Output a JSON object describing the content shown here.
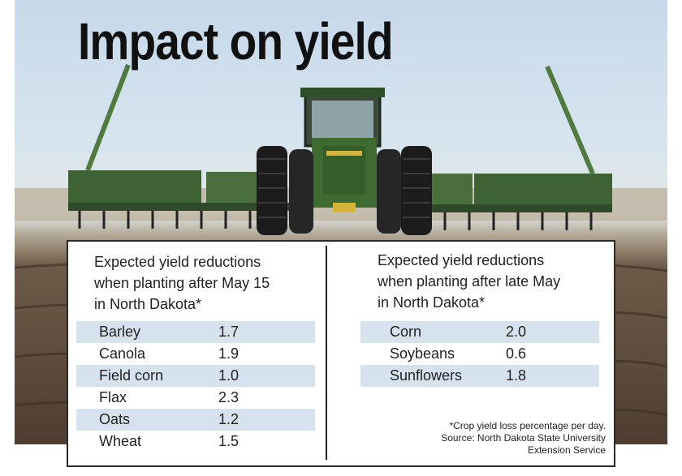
{
  "headline": "Impact on yield",
  "left_table": {
    "title_lines": [
      "Expected yield reductions",
      "when planting after May 15",
      "in North Dakota*"
    ],
    "rows": [
      {
        "crop": "Barley",
        "value": "1.7",
        "shaded": true
      },
      {
        "crop": "Canola",
        "value": "1.9",
        "shaded": false
      },
      {
        "crop": "Field corn",
        "value": "1.0",
        "shaded": true
      },
      {
        "crop": "Flax",
        "value": "2.3",
        "shaded": false
      },
      {
        "crop": "Oats",
        "value": "1.2",
        "shaded": true
      },
      {
        "crop": "Wheat",
        "value": "1.5",
        "shaded": false
      }
    ]
  },
  "right_table": {
    "title_lines": [
      "Expected yield reductions",
      "when planting after late May",
      "in North Dakota*"
    ],
    "rows": [
      {
        "crop": "Corn",
        "value": "2.0",
        "shaded": true
      },
      {
        "crop": "Soybeans",
        "value": "0.6",
        "shaded": false
      },
      {
        "crop": "Sunflowers",
        "value": "1.8",
        "shaded": true
      }
    ]
  },
  "footnote_lines": [
    "*Crop yield loss percentage per day.",
    "Source: North Dakota State University",
    "Extension Service"
  ],
  "colors": {
    "row_shade": "#d6e3ee",
    "tractor_green": "#3f6b32",
    "tractor_yellow": "#d6b43a",
    "border": "#2a2a2a"
  }
}
